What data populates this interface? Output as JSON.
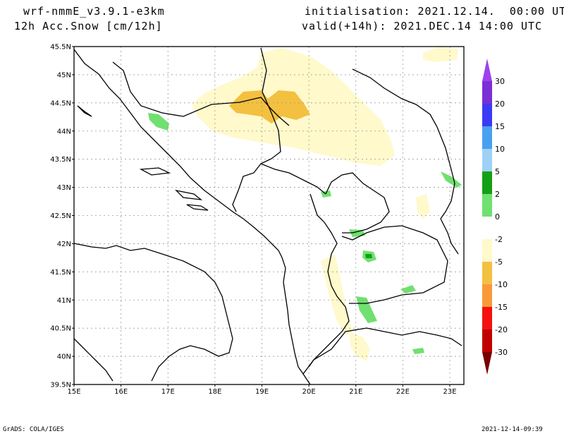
{
  "header": {
    "model": "wrf-nmmE_v3.9.1-e3km",
    "field": "12h Acc.Snow [cm/12h]",
    "init": "initialisation: 2021.12.14.  00:00 UTC",
    "valid": "valid(+14h): 2021.DEC.14 14:00 UTC"
  },
  "footer": {
    "credit": "GrADS: COLA/IGES",
    "timestamp": "2021-12-14-09:39"
  },
  "map": {
    "lat_labels": [
      "45.5N",
      "45N",
      "44.5N",
      "44N",
      "43.5N",
      "43N",
      "42.5N",
      "42N",
      "41.5N",
      "41N",
      "40.5N",
      "40N",
      "39.5N"
    ],
    "lon_labels": [
      "15E",
      "16E",
      "17E",
      "18E",
      "19E",
      "20E",
      "21E",
      "22E",
      "23E"
    ],
    "lat_range": [
      39.5,
      45.5
    ],
    "lon_range": [
      15.0,
      23.3
    ],
    "grid": true
  },
  "colorbar": {
    "levels": [
      "30",
      "20",
      "15",
      "10",
      "5",
      "2",
      "0",
      "-2",
      "-5",
      "-10",
      "-15",
      "-20",
      "-30"
    ],
    "colors": [
      "#7b2fd6",
      "#3b3bf5",
      "#4aa0f0",
      "#9fd0f7",
      "#14a014",
      "#70e070",
      "#ffffff",
      "#fff9cc",
      "#f3c040",
      "#f99a3a",
      "#f51010",
      "#c00000",
      "#8c0000"
    ],
    "top_color": "#a040f0",
    "bottom_color": "#7a0000"
  }
}
